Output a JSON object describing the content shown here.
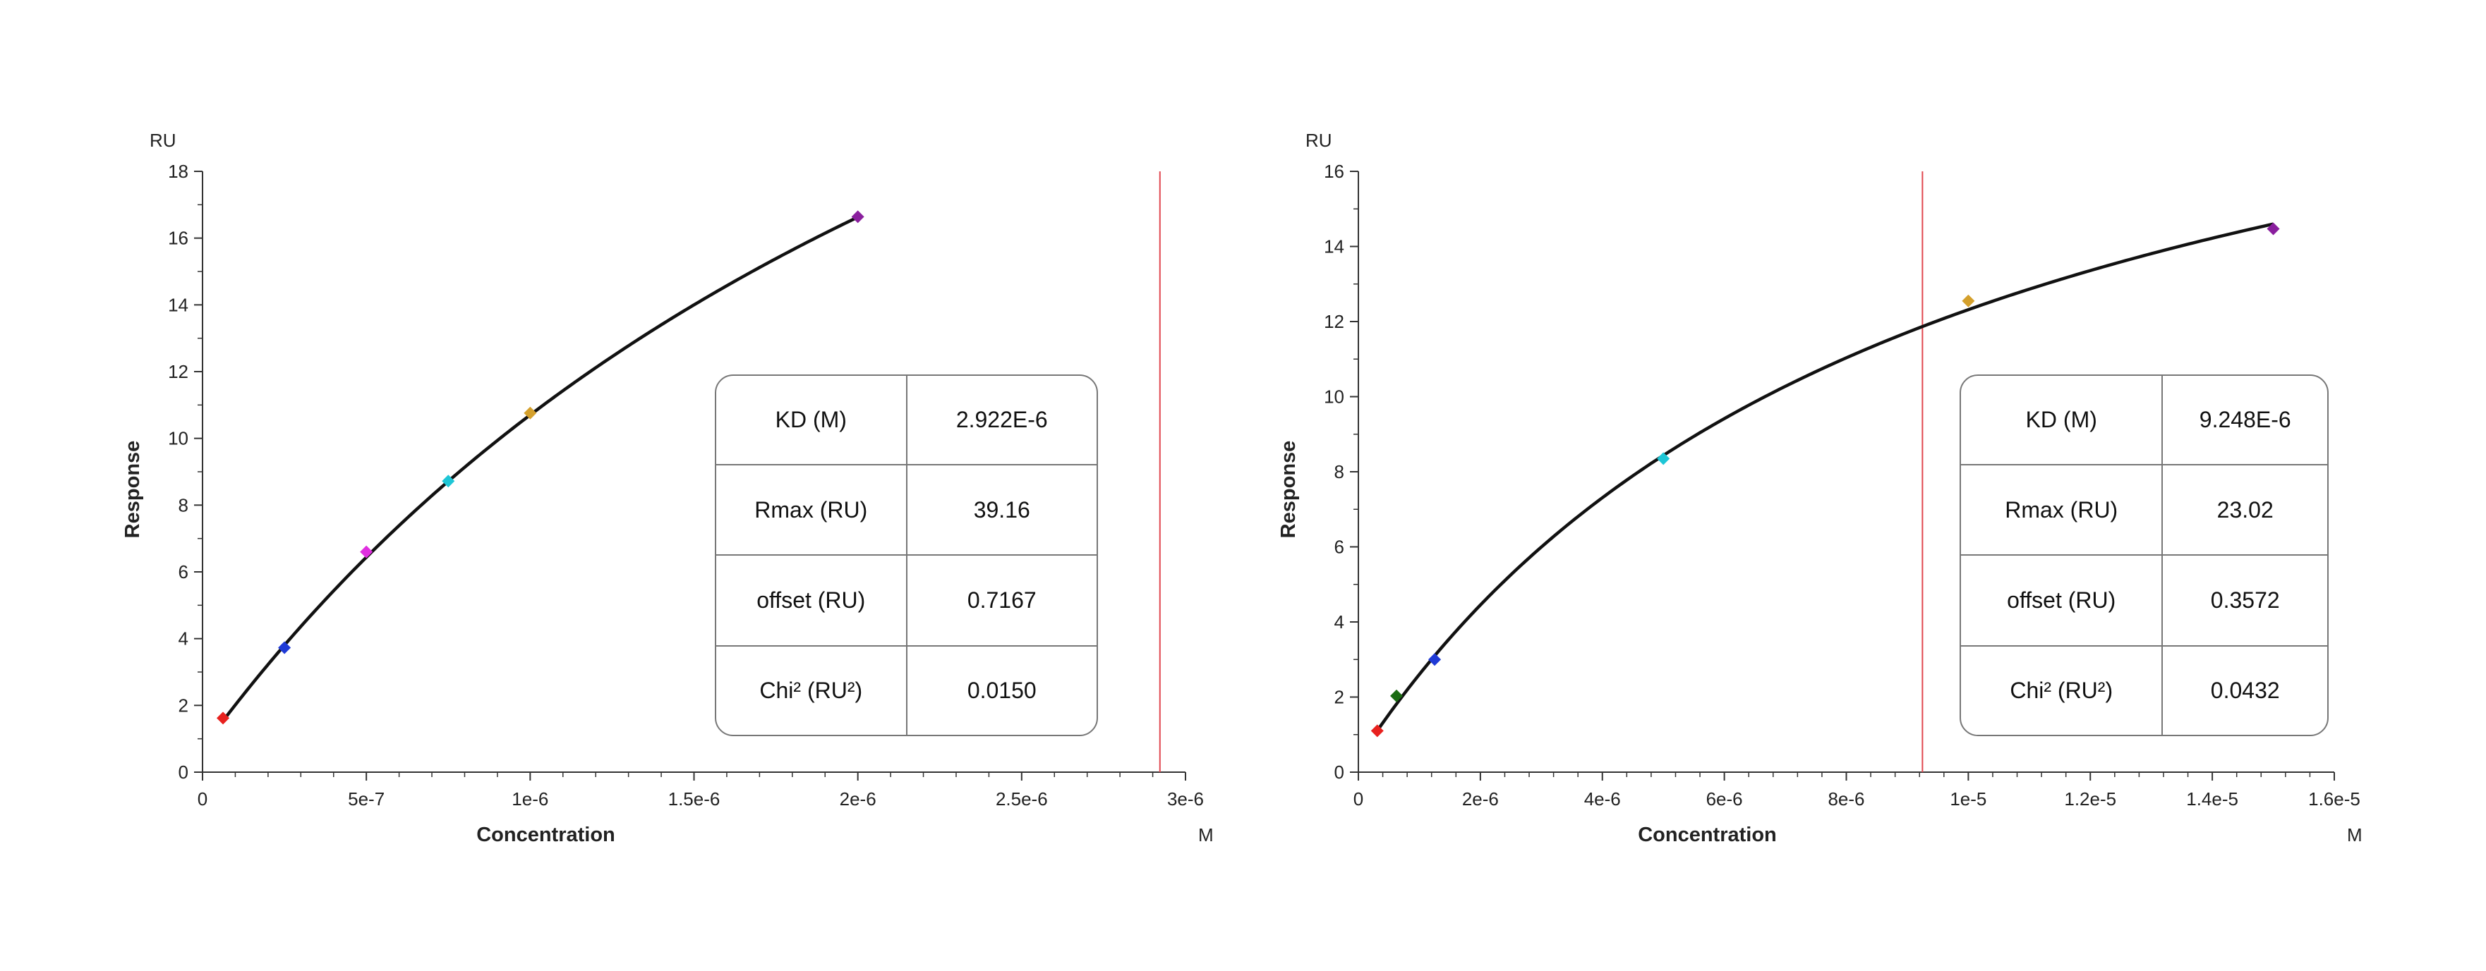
{
  "chart_data": [
    {
      "type": "scatter",
      "ylabel": "Response",
      "xlabel": "Concentration",
      "y_unit": "RU",
      "x_unit": "M",
      "xlim": [
        0,
        3e-06
      ],
      "ylim": [
        0,
        18
      ],
      "x_ticks": [
        0,
        5e-07,
        1e-06,
        1.5e-06,
        2e-06,
        2.5e-06,
        3e-06
      ],
      "x_tick_labels": [
        "0",
        "5e-7",
        "1e-6",
        "1.5e-6",
        "2e-6",
        "2.5e-6",
        "3e-6"
      ],
      "y_ticks": [
        0,
        2,
        4,
        6,
        8,
        10,
        12,
        14,
        16,
        18
      ],
      "y_tick_labels": [
        "0",
        "2",
        "4",
        "6",
        "8",
        "10",
        "12",
        "14",
        "16",
        "18"
      ],
      "points": [
        {
          "x": 6.25e-08,
          "y": 1.62,
          "color": "#e8211e"
        },
        {
          "x": 2.5e-07,
          "y": 3.73,
          "color": "#1f3ad6"
        },
        {
          "x": 5e-07,
          "y": 6.6,
          "color": "#e02ee0"
        },
        {
          "x": 7.5e-07,
          "y": 8.72,
          "color": "#1ec6d6"
        },
        {
          "x": 1e-06,
          "y": 10.76,
          "color": "#d4a02c"
        },
        {
          "x": 2e-06,
          "y": 16.64,
          "color": "#8a1f9e"
        }
      ],
      "fit": {
        "kd": 2.922e-06,
        "rmax": 39.16,
        "offset": 0.7167,
        "x_range": [
          6.25e-08,
          2e-06
        ]
      },
      "marker_line_x": 2.922e-06,
      "marker_line_color": "#e0474f",
      "table": [
        {
          "label": "KD (M)",
          "value": "2.922E-6"
        },
        {
          "label": "Rmax (RU)",
          "value": "39.16"
        },
        {
          "label": "offset (RU)",
          "value": "0.7167"
        },
        {
          "label": "Chi² (RU²)",
          "value": "0.0150"
        }
      ]
    },
    {
      "type": "scatter",
      "ylabel": "Response",
      "xlabel": "Concentration",
      "y_unit": "RU",
      "x_unit": "M",
      "xlim": [
        0,
        1.6e-05
      ],
      "ylim": [
        0,
        16
      ],
      "x_ticks": [
        0,
        2e-06,
        4e-06,
        6e-06,
        8e-06,
        1e-05,
        1.2e-05,
        1.4e-05,
        1.6e-05
      ],
      "x_tick_labels": [
        "0",
        "2e-6",
        "4e-6",
        "6e-6",
        "8e-6",
        "1e-5",
        "1.2e-5",
        "1.4e-5",
        "1.6e-5"
      ],
      "y_ticks": [
        0,
        2,
        4,
        6,
        8,
        10,
        12,
        14,
        16
      ],
      "y_tick_labels": [
        "0",
        "2",
        "4",
        "6",
        "8",
        "10",
        "12",
        "14",
        "16"
      ],
      "points": [
        {
          "x": 3.1e-07,
          "y": 1.1,
          "color": "#e8211e"
        },
        {
          "x": 6.25e-07,
          "y": 2.03,
          "color": "#1a6b12"
        },
        {
          "x": 1.25e-06,
          "y": 3.0,
          "color": "#1f3ad6"
        },
        {
          "x": 5e-06,
          "y": 8.35,
          "color": "#1ec6d6"
        },
        {
          "x": 1e-05,
          "y": 12.55,
          "color": "#d4a02c"
        },
        {
          "x": 1.5e-05,
          "y": 14.47,
          "color": "#8a1f9e"
        }
      ],
      "fit": {
        "kd": 9.248e-06,
        "rmax": 23.02,
        "offset": 0.3572,
        "x_range": [
          3.1e-07,
          1.5e-05
        ]
      },
      "marker_line_x": 9.248e-06,
      "marker_line_color": "#e0474f",
      "table": [
        {
          "label": "KD (M)",
          "value": "9.248E-6"
        },
        {
          "label": "Rmax (RU)",
          "value": "23.02"
        },
        {
          "label": "offset (RU)",
          "value": "0.3572"
        },
        {
          "label": "Chi² (RU²)",
          "value": "0.0432"
        }
      ]
    }
  ]
}
